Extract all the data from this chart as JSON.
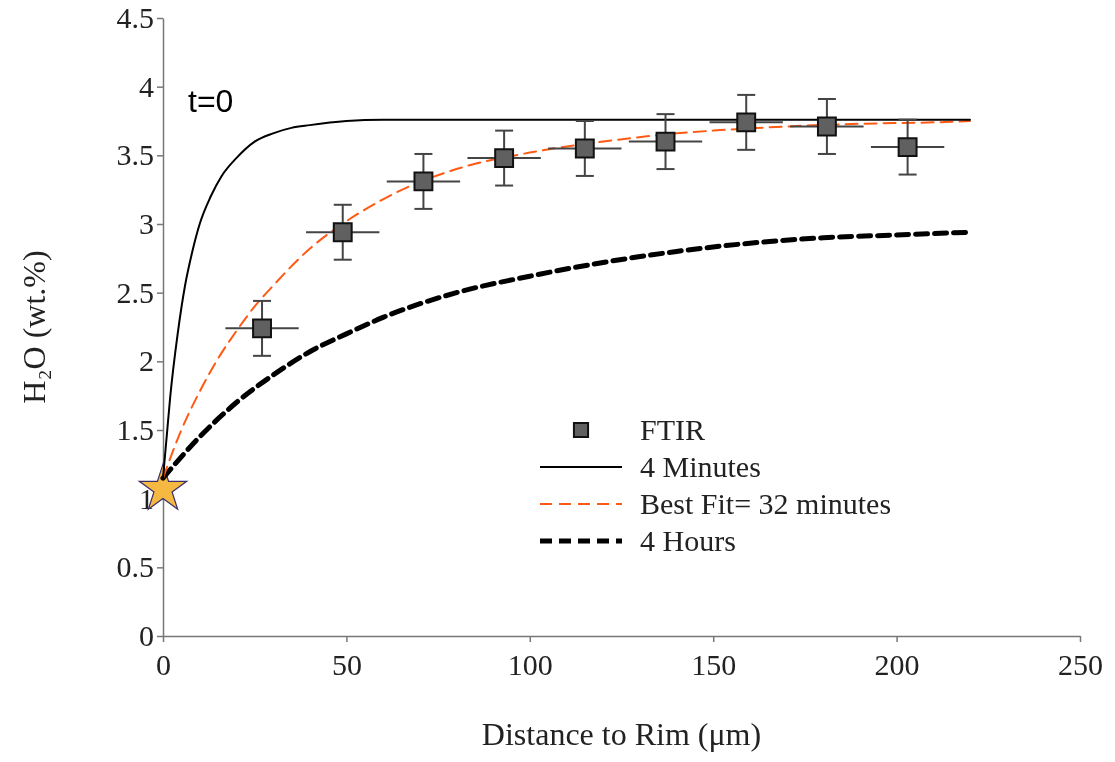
{
  "chart_data": {
    "type": "scatter",
    "xlabel": "Distance to Rim (μm)",
    "ylabel": "H₂O (wt.%)",
    "annotations": [
      "t=0"
    ],
    "xlim": [
      0,
      250
    ],
    "xticks": [
      0,
      50,
      100,
      150,
      200,
      250
    ],
    "ylim": [
      0,
      4.5
    ],
    "yticks": [
      0,
      0.5,
      1,
      1.5,
      2,
      2.5,
      3,
      3.5,
      4,
      4.5
    ],
    "grid": false,
    "legend": "bottom right",
    "series": [
      {
        "name": "FTIR",
        "marker": "square",
        "color": "#606060",
        "x": [
          27,
          49,
          71,
          93,
          115,
          137,
          159,
          181,
          203
        ],
        "values": [
          2.24,
          2.94,
          3.31,
          3.48,
          3.55,
          3.6,
          3.74,
          3.71,
          3.56
        ],
        "errors": [
          0.2,
          0.2,
          0.2,
          0.2,
          0.2,
          0.2,
          0.2,
          0.2,
          0.2
        ],
        "xerrors": [
          10,
          10,
          10,
          10,
          10,
          10,
          10,
          10,
          10
        ]
      },
      {
        "name": "4 Minutes",
        "type": "line",
        "marker": "none",
        "line_style": "solid",
        "color": "#000000",
        "x": [
          0,
          1,
          2,
          4,
          6,
          8,
          10,
          13,
          16,
          20,
          25,
          30,
          35,
          40,
          50,
          60,
          70,
          90,
          120,
          220
        ],
        "values": [
          1.15,
          1.45,
          1.75,
          2.2,
          2.55,
          2.8,
          3.0,
          3.2,
          3.35,
          3.48,
          3.6,
          3.66,
          3.7,
          3.72,
          3.75,
          3.76,
          3.76,
          3.76,
          3.76,
          3.76
        ]
      },
      {
        "name": "Best Fit= 32 minutes",
        "type": "line",
        "marker": "none",
        "line_style": "dashed",
        "color": "#ff5a14",
        "x": [
          0,
          5,
          10,
          15,
          20,
          25,
          30,
          40,
          50,
          60,
          66,
          80,
          100,
          120,
          140,
          150,
          170,
          190,
          210,
          220
        ],
        "values": [
          1.15,
          1.5,
          1.78,
          2.02,
          2.22,
          2.4,
          2.55,
          2.82,
          3.02,
          3.18,
          3.26,
          3.4,
          3.52,
          3.6,
          3.66,
          3.68,
          3.71,
          3.73,
          3.74,
          3.75
        ]
      },
      {
        "name": "4 Hours",
        "type": "line",
        "marker": "none",
        "line_style": "dashed",
        "color": "#000000",
        "x": [
          0,
          10,
          20,
          30,
          40,
          50,
          60,
          80,
          100,
          120,
          140,
          160,
          180,
          200,
          220
        ],
        "values": [
          1.15,
          1.45,
          1.7,
          1.9,
          2.07,
          2.2,
          2.32,
          2.5,
          2.62,
          2.72,
          2.8,
          2.86,
          2.9,
          2.92,
          2.94
        ]
      },
      {
        "marker": "star",
        "color": "#f5b841",
        "x": [
          0
        ],
        "values": [
          1.07
        ]
      }
    ]
  }
}
